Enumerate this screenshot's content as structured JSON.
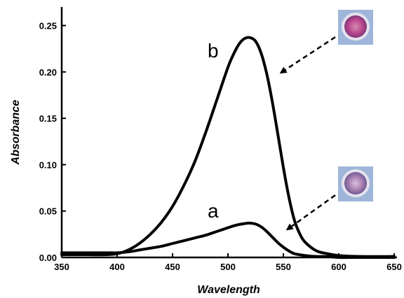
{
  "chart_data": {
    "type": "line",
    "xlabel": "Wavelength",
    "ylabel": "Absorbance",
    "xlim": [
      350,
      650
    ],
    "ylim": [
      0,
      0.27
    ],
    "x_ticks": [
      350,
      400,
      450,
      500,
      550,
      600,
      650
    ],
    "x_tick_labels": [
      "350",
      "400",
      "450",
      "500",
      "550",
      "600",
      "650"
    ],
    "y_ticks": [
      0.0,
      0.05,
      0.1,
      0.15,
      0.2,
      0.25
    ],
    "y_tick_labels": [
      "0.00",
      "0.05",
      "0.10",
      "0.15",
      "0.20",
      "0.25"
    ],
    "grid": false,
    "series": [
      {
        "name": "a",
        "x": [
          350,
          370,
          390,
          400,
          410,
          420,
          430,
          440,
          450,
          460,
          470,
          480,
          490,
          500,
          505,
          510,
          515,
          520,
          525,
          530,
          535,
          540,
          545,
          550,
          555,
          560,
          570,
          580,
          590,
          600,
          620,
          650
        ],
        "values": [
          0.005,
          0.005,
          0.005,
          0.005,
          0.006,
          0.008,
          0.01,
          0.012,
          0.015,
          0.018,
          0.021,
          0.024,
          0.028,
          0.032,
          0.034,
          0.0355,
          0.0365,
          0.037,
          0.036,
          0.033,
          0.028,
          0.022,
          0.016,
          0.011,
          0.007,
          0.004,
          0.002,
          0.001,
          0.001,
          0.0,
          0.0,
          0.0
        ]
      },
      {
        "name": "b",
        "x": [
          350,
          370,
          390,
          400,
          410,
          420,
          430,
          440,
          450,
          460,
          470,
          480,
          490,
          500,
          505,
          510,
          515,
          520,
          525,
          530,
          535,
          540,
          545,
          550,
          555,
          560,
          565,
          570,
          580,
          590,
          600,
          620,
          650
        ],
        "values": [
          0.003,
          0.003,
          0.003,
          0.004,
          0.008,
          0.015,
          0.025,
          0.038,
          0.055,
          0.077,
          0.103,
          0.135,
          0.17,
          0.205,
          0.219,
          0.23,
          0.236,
          0.237,
          0.233,
          0.22,
          0.198,
          0.168,
          0.133,
          0.097,
          0.065,
          0.04,
          0.025,
          0.016,
          0.007,
          0.004,
          0.002,
          0.001,
          0.001
        ]
      }
    ],
    "annotations": [
      "a",
      "b"
    ]
  },
  "colors": {
    "curve": "#000000",
    "vial_background": "#9fb6da",
    "vial_b_liquid": "#b8458a",
    "vial_a_liquid": "#a47aae"
  }
}
